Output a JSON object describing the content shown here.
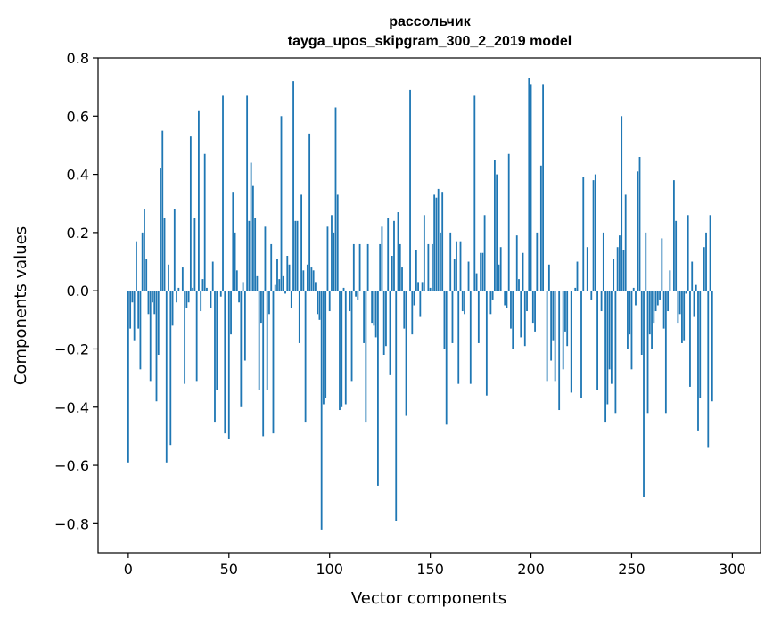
{
  "chart_data": {
    "type": "bar",
    "title": "рассольчик",
    "subtitle": "tayga_upos_skipgram_300_2_2019 model",
    "xlabel": "Vector components",
    "ylabel": "Components values",
    "xlim": [
      -15,
      314
    ],
    "ylim": [
      -0.9,
      0.8
    ],
    "xticks": [
      0,
      50,
      100,
      150,
      200,
      250,
      300
    ],
    "xtick_labels": [
      "0",
      "50",
      "100",
      "150",
      "200",
      "250",
      "300"
    ],
    "yticks": [
      -0.8,
      -0.6,
      -0.4,
      -0.2,
      0.0,
      0.2,
      0.4,
      0.6,
      0.8
    ],
    "ytick_labels": [
      "−0.8",
      "−0.6",
      "−0.4",
      "−0.2",
      "0.0",
      "0.2",
      "0.4",
      "0.6",
      "0.8"
    ],
    "grid": false,
    "legend": "none",
    "bar_color": "#1f77b4",
    "x_start": 0,
    "values": [
      -0.59,
      -0.13,
      -0.04,
      -0.17,
      0.17,
      -0.13,
      -0.27,
      0.2,
      0.28,
      0.11,
      -0.08,
      -0.31,
      -0.04,
      -0.08,
      -0.38,
      -0.22,
      0.42,
      0.55,
      0.25,
      -0.59,
      0.09,
      -0.53,
      -0.12,
      0.28,
      -0.04,
      0.01,
      0.0,
      0.08,
      -0.32,
      -0.06,
      -0.04,
      0.53,
      0.01,
      0.25,
      -0.31,
      0.62,
      -0.07,
      0.04,
      0.47,
      0.01,
      0.0,
      -0.06,
      0.1,
      -0.45,
      -0.34,
      0.0,
      -0.02,
      0.67,
      -0.49,
      0.0,
      -0.51,
      -0.15,
      0.34,
      0.2,
      0.07,
      -0.04,
      -0.4,
      0.03,
      -0.24,
      0.67,
      0.24,
      0.44,
      0.36,
      0.25,
      0.05,
      -0.34,
      -0.11,
      -0.5,
      0.22,
      -0.34,
      -0.08,
      0.16,
      -0.49,
      0.02,
      0.11,
      0.04,
      0.6,
      0.05,
      -0.01,
      0.12,
      0.09,
      -0.06,
      0.72,
      0.24,
      0.24,
      -0.18,
      0.33,
      0.07,
      -0.45,
      0.09,
      0.54,
      0.08,
      0.07,
      0.03,
      -0.08,
      -0.1,
      -0.82,
      -0.39,
      -0.37,
      0.22,
      -0.07,
      0.26,
      0.2,
      0.63,
      0.33,
      -0.41,
      -0.4,
      0.01,
      -0.39,
      0.0,
      -0.07,
      -0.31,
      0.16,
      -0.02,
      -0.03,
      0.16,
      0.0,
      -0.18,
      -0.45,
      0.16,
      0.0,
      -0.11,
      -0.12,
      -0.16,
      -0.67,
      0.16,
      0.22,
      -0.22,
      -0.19,
      0.25,
      -0.29,
      0.12,
      0.24,
      -0.79,
      0.27,
      0.16,
      0.08,
      -0.13,
      -0.43,
      0.0,
      0.69,
      -0.15,
      -0.05,
      0.14,
      0.03,
      -0.09,
      0.03,
      0.26,
      0.0,
      0.16,
      0.01,
      0.16,
      0.33,
      0.32,
      0.35,
      0.2,
      0.34,
      -0.2,
      -0.46,
      0.0,
      0.2,
      -0.18,
      0.11,
      0.17,
      -0.32,
      0.17,
      -0.07,
      -0.08,
      0.0,
      0.1,
      -0.32,
      0.0,
      0.67,
      0.06,
      -0.18,
      0.13,
      0.13,
      0.26,
      -0.36,
      0.0,
      -0.08,
      -0.03,
      0.45,
      0.4,
      0.09,
      0.15,
      0.0,
      -0.05,
      -0.06,
      0.47,
      -0.13,
      -0.2,
      0.0,
      0.19,
      0.04,
      -0.16,
      0.13,
      -0.19,
      -0.07,
      0.73,
      0.71,
      -0.11,
      -0.14,
      0.2,
      0.0,
      0.43,
      0.71,
      0.0,
      -0.31,
      0.09,
      -0.24,
      -0.17,
      -0.31,
      0.0,
      -0.41,
      0.0,
      -0.27,
      -0.14,
      -0.19,
      0.0,
      -0.35,
      0.0,
      0.01,
      0.1,
      0.0,
      -0.37,
      0.39,
      0.0,
      0.15,
      0.0,
      -0.03,
      0.38,
      0.4,
      -0.34,
      0.0,
      -0.07,
      0.2,
      -0.45,
      -0.39,
      -0.27,
      -0.32,
      0.11,
      -0.42,
      0.15,
      0.19,
      0.6,
      0.14,
      0.33,
      -0.2,
      -0.15,
      -0.27,
      0.01,
      -0.05,
      0.41,
      0.46,
      -0.22,
      -0.71,
      0.2,
      -0.42,
      -0.15,
      -0.2,
      -0.11,
      -0.07,
      -0.05,
      -0.03,
      0.18,
      -0.13,
      -0.42,
      -0.07,
      0.07,
      0.0,
      0.38,
      0.24,
      -0.11,
      -0.08,
      -0.18,
      -0.17,
      -0.01,
      0.26,
      -0.33,
      0.1,
      -0.09,
      0.02,
      -0.48,
      -0.37,
      0.0,
      0.15,
      0.2,
      -0.54,
      0.26,
      -0.38
    ]
  }
}
